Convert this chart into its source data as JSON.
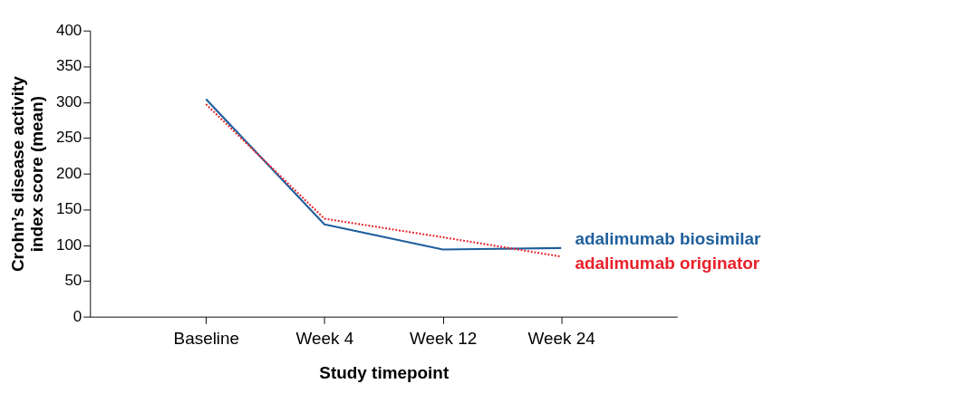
{
  "chart_data": {
    "type": "line",
    "xlabel": "Study timepoint",
    "ylabel": "Crohn’s disease activity\nindex score (mean)",
    "categories": [
      "Baseline",
      "Week 4",
      "Week 12",
      "Week 24"
    ],
    "series": [
      {
        "name": "adalimumab biosimilar",
        "color": "#1f5f9c",
        "line_style": "solid",
        "values": [
          304,
          129,
          94,
          96
        ]
      },
      {
        "name": "adalimumab originator",
        "color": "#e8202a",
        "line_style": "dotted",
        "values": [
          297,
          137,
          111,
          84
        ]
      }
    ],
    "ylim": [
      0,
      400
    ],
    "yticks": [
      0,
      50,
      100,
      150,
      200,
      250,
      300,
      350,
      400
    ],
    "grid": false,
    "legend": false,
    "marker": "none"
  }
}
